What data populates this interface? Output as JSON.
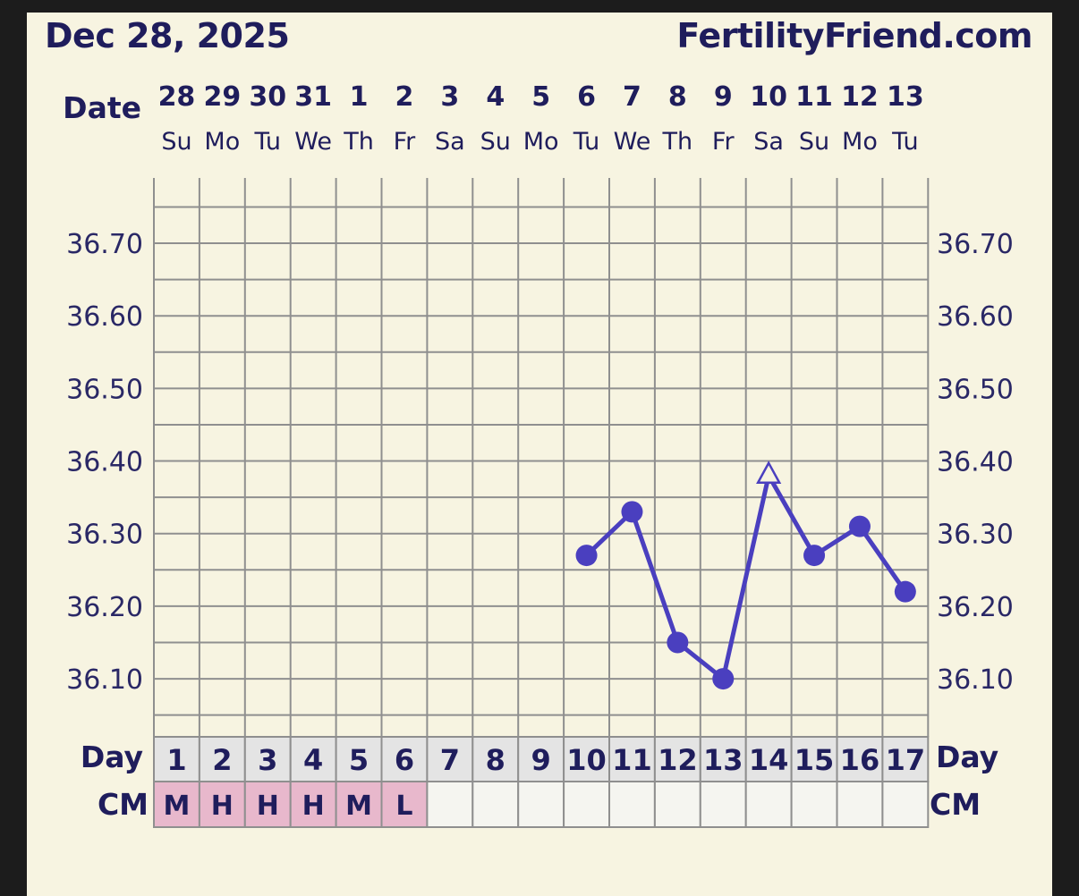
{
  "header": {
    "date": "Dec 28, 2025",
    "site": "FertilityFriend.com"
  },
  "labels": {
    "date_row": "Date",
    "day_row": "Day",
    "cm_row": "CM"
  },
  "colors": {
    "line": "#4a3fbf",
    "grid": "#8f8f8f",
    "text": "#1f1d5c",
    "cm_filled": "#e8b8cc",
    "day_cell": "#e4e4e4",
    "cm_empty": "#f5f5f0"
  },
  "chart_data": {
    "type": "line",
    "dates": [
      "28",
      "29",
      "30",
      "31",
      "1",
      "2",
      "3",
      "4",
      "5",
      "6",
      "7",
      "8",
      "9",
      "10",
      "11",
      "12",
      "13"
    ],
    "weekdays": [
      "Su",
      "Mo",
      "Tu",
      "We",
      "Th",
      "Fr",
      "Sa",
      "Su",
      "Mo",
      "Tu",
      "We",
      "Th",
      "Fr",
      "Sa",
      "Su",
      "Mo",
      "Tu"
    ],
    "cycle_days": [
      1,
      2,
      3,
      4,
      5,
      6,
      7,
      8,
      9,
      10,
      11,
      12,
      13,
      14,
      15,
      16,
      17
    ],
    "y_ticks": [
      "36.10",
      "36.20",
      "36.30",
      "36.40",
      "36.50",
      "36.60",
      "36.70"
    ],
    "ylim": [
      36.02,
      36.79
    ],
    "temperatures": [
      null,
      null,
      null,
      null,
      null,
      null,
      null,
      null,
      null,
      36.27,
      36.33,
      36.15,
      36.1,
      36.38,
      36.27,
      36.31,
      36.22
    ],
    "open_markers": [
      14
    ],
    "cervical_mucus": [
      "M",
      "H",
      "H",
      "H",
      "M",
      "L",
      "",
      "",
      "",
      "",
      "",
      "",
      "",
      "",
      "",
      "",
      ""
    ],
    "grid": true
  }
}
